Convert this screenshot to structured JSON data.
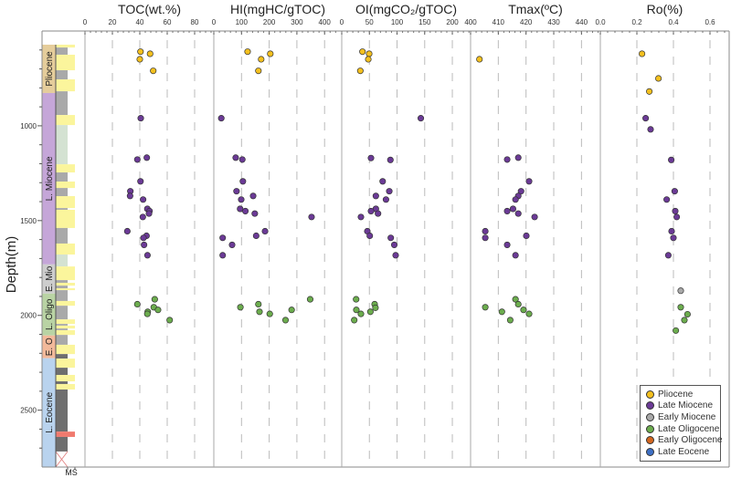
{
  "chart_data": {
    "type": "scatter",
    "ylabel": "Depth(m)",
    "ylim": [
      500,
      2800
    ],
    "yticks": [
      1000,
      1500,
      2000,
      2500
    ],
    "y_inverted": true,
    "grid": "dashed vertical at major x ticks",
    "legend_placement": "bottom-right",
    "legend": [
      {
        "name": "Pliocene",
        "color": "#f4c01e"
      },
      {
        "name": "Late Miocene",
        "color": "#6b3a96"
      },
      {
        "name": "Early Miocene",
        "color": "#a9a9a9"
      },
      {
        "name": "Late Oligocene",
        "color": "#6cad4e"
      },
      {
        "name": "Early Oligocene",
        "color": "#d3661f"
      },
      {
        "name": "Late Eocene",
        "color": "#3d6fc5"
      }
    ],
    "panels": [
      {
        "title": "TOC(wt.%)",
        "xlim": [
          0,
          94
        ],
        "xticks": [
          "0",
          "20",
          "40",
          "60",
          "80"
        ],
        "series": [
          {
            "name": "Pliocene",
            "points": [
              [
                40.5,
                609
              ],
              [
                47.5,
                620
              ],
              [
                40,
                649
              ],
              [
                49.8,
                710
              ]
            ]
          },
          {
            "name": "Late Miocene",
            "points": [
              [
                40.7,
                960
              ],
              [
                38.2,
                1178
              ],
              [
                45.1,
                1168
              ],
              [
                40.5,
                1293
              ],
              [
                33.1,
                1345
              ],
              [
                32.9,
                1370
              ],
              [
                42.4,
                1389
              ],
              [
                45.5,
                1438
              ],
              [
                47.1,
                1450
              ],
              [
                46.7,
                1463
              ],
              [
                42.2,
                1481
              ],
              [
                30.9,
                1556
              ],
              [
                44.9,
                1580
              ],
              [
                42.7,
                1591
              ],
              [
                43.1,
                1628
              ],
              [
                45.6,
                1683
              ]
            ]
          },
          {
            "name": "Late Oligocene",
            "points": [
              [
                38.2,
                1941
              ],
              [
                50.9,
                1915
              ],
              [
                50.2,
                1957
              ],
              [
                53.3,
                1971
              ],
              [
                45.8,
                1981
              ],
              [
                45.5,
                1992
              ],
              [
                61.8,
                2025
              ]
            ]
          }
        ]
      },
      {
        "title": "HI(mgHC/gTOC)",
        "xlim": [
          0,
          462
        ],
        "xticks": [
          "0",
          "100",
          "200",
          "300",
          "400"
        ],
        "series": [
          {
            "name": "Pliocene",
            "points": [
              [
                122,
                609
              ],
              [
                204,
                620
              ],
              [
                171,
                649
              ],
              [
                161,
                710
              ]
            ]
          },
          {
            "name": "Late Miocene",
            "points": [
              [
                27,
                960
              ],
              [
                79,
                1168
              ],
              [
                103,
                1178
              ],
              [
                105,
                1293
              ],
              [
                82,
                1345
              ],
              [
                142,
                1370
              ],
              [
                99,
                1389
              ],
              [
                95,
                1438
              ],
              [
                114,
                1450
              ],
              [
                148,
                1463
              ],
              [
                353,
                1481
              ],
              [
                185,
                1556
              ],
              [
                153,
                1580
              ],
              [
                32,
                1591
              ],
              [
                66,
                1628
              ],
              [
                32,
                1683
              ]
            ]
          },
          {
            "name": "Late Oligocene",
            "points": [
              [
                96,
                1957
              ],
              [
                161,
                1941
              ],
              [
                165,
                1981
              ],
              [
                202,
                1992
              ],
              [
                259,
                2025
              ],
              [
                281,
                1971
              ],
              [
                348,
                1915
              ]
            ]
          }
        ]
      },
      {
        "title": "OI(mgCO₂/gTOC)",
        "xlim": [
          0,
          233
        ],
        "xticks": [
          "0",
          "50",
          "100",
          "150",
          "200"
        ],
        "series": [
          {
            "name": "Pliocene",
            "points": [
              [
                37.5,
                609
              ],
              [
                49.6,
                620
              ],
              [
                48,
                649
              ],
              [
                33.6,
                710
              ]
            ]
          },
          {
            "name": "Late Miocene",
            "points": [
              [
                143,
                960
              ],
              [
                52.9,
                1170
              ],
              [
                88,
                1180
              ],
              [
                74,
                1293
              ],
              [
                86,
                1345
              ],
              [
                61.7,
                1370
              ],
              [
                80,
                1389
              ],
              [
                61.7,
                1438
              ],
              [
                52.9,
                1450
              ],
              [
                65.6,
                1463
              ],
              [
                34.7,
                1481
              ],
              [
                46.3,
                1556
              ],
              [
                50.7,
                1580
              ],
              [
                88.7,
                1591
              ],
              [
                95,
                1628
              ],
              [
                97.5,
                1683
              ]
            ]
          },
          {
            "name": "Late Oligocene",
            "points": [
              [
                26,
                1915
              ],
              [
                26.4,
                1971
              ],
              [
                34.7,
                1992
              ],
              [
                22.6,
                2025
              ],
              [
                59.5,
                1941
              ],
              [
                61,
                1960
              ],
              [
                51.8,
                1981
              ]
            ]
          }
        ]
      },
      {
        "title": "Tmax(ºC)",
        "xlim": [
          400,
          446.8
        ],
        "xticks": [
          "400",
          "410",
          "420",
          "430",
          "440"
        ],
        "series": [
          {
            "name": "Pliocene",
            "points": [
              [
                403.2,
                649
              ]
            ]
          },
          {
            "name": "Late Miocene",
            "points": [
              [
                413.2,
                1178
              ],
              [
                417.2,
                1168
              ],
              [
                421.1,
                1293
              ],
              [
                418.2,
                1345
              ],
              [
                417.2,
                1370
              ],
              [
                416.2,
                1389
              ],
              [
                415.3,
                1438
              ],
              [
                413.2,
                1450
              ],
              [
                417.2,
                1463
              ],
              [
                423.1,
                1481
              ],
              [
                405.3,
                1556
              ],
              [
                405.3,
                1591
              ],
              [
                420.1,
                1580
              ],
              [
                413.2,
                1628
              ],
              [
                416.2,
                1683
              ]
            ]
          },
          {
            "name": "Late Oligocene",
            "points": [
              [
                405.3,
                1957
              ],
              [
                411.3,
                1981
              ],
              [
                414.3,
                2025
              ],
              [
                416.2,
                1915
              ],
              [
                417.2,
                1941
              ],
              [
                419.1,
                1971
              ],
              [
                421.1,
                1992
              ]
            ]
          }
        ]
      },
      {
        "title": "Ro(%)",
        "xlim": [
          0,
          0.705
        ],
        "xticks": [
          "0.0",
          "0.2",
          "0.4",
          "0.6"
        ],
        "series": [
          {
            "name": "Pliocene",
            "points": [
              [
                0.228,
                620
              ],
              [
                0.318,
                750
              ],
              [
                0.268,
                819
              ]
            ]
          },
          {
            "name": "Late Miocene",
            "points": [
              [
                0.248,
                960
              ],
              [
                0.275,
                1019
              ],
              [
                0.388,
                1180
              ],
              [
                0.407,
                1345
              ],
              [
                0.363,
                1389
              ],
              [
                0.41,
                1450
              ],
              [
                0.418,
                1481
              ],
              [
                0.39,
                1556
              ],
              [
                0.4,
                1591
              ],
              [
                0.372,
                1683
              ]
            ]
          },
          {
            "name": "Early Miocene",
            "points": [
              [
                0.44,
                1870
              ]
            ]
          },
          {
            "name": "Late Oligocene",
            "points": [
              [
                0.44,
                1957
              ],
              [
                0.477,
                1994
              ],
              [
                0.46,
                2025
              ],
              [
                0.413,
                2080
              ]
            ]
          }
        ]
      }
    ],
    "stratigraphy": {
      "epochs": [
        {
          "label": "Pliocene",
          "top": 572,
          "base": 827,
          "color": "#e5cd9b"
        },
        {
          "label": "L. Miocene",
          "top": 827,
          "base": 1731,
          "color": "#c5a6d8"
        },
        {
          "label": "E. Mio",
          "top": 1731,
          "base": 1885,
          "color": "#cdcdcd"
        },
        {
          "label": "L. Oligo",
          "top": 1885,
          "base": 2106,
          "color": "#b9d3a4"
        },
        {
          "label": "E. O",
          "top": 2106,
          "base": 2226,
          "color": "#f2b99a"
        },
        {
          "label": "L. Eocene",
          "top": 2226,
          "base": 2800,
          "color": "#b9d3ee"
        }
      ],
      "lithology_colors": {
        "sand": "#fbf59c",
        "shale": "#a9a9a9",
        "green": "#d4e2d2",
        "dark": "#6e6e6e",
        "red": "#f07a6e",
        "missing": "#ffffff"
      },
      "lithology": [
        [
          "sand",
          572,
          587
        ],
        [
          "shale",
          587,
          625
        ],
        [
          "sand",
          625,
          707
        ],
        [
          "shale",
          707,
          755
        ],
        [
          "sand",
          755,
          818
        ],
        [
          "shale",
          818,
          943
        ],
        [
          "sand",
          943,
          996
        ],
        [
          "green",
          996,
          1203
        ],
        [
          "sand",
          1203,
          1246
        ],
        [
          "shale",
          1246,
          1294
        ],
        [
          "sand",
          1294,
          1328
        ],
        [
          "shale",
          1328,
          1371
        ],
        [
          "sand",
          1371,
          1434
        ],
        [
          "shale",
          1434,
          1443
        ],
        [
          "sand",
          1443,
          1539
        ],
        [
          "shale",
          1539,
          1621
        ],
        [
          "sand",
          1621,
          1679
        ],
        [
          "green",
          1679,
          1742
        ],
        [
          "sand",
          1742,
          1814
        ],
        [
          "shale",
          1814,
          1828
        ],
        [
          "sand",
          1828,
          1843
        ],
        [
          "shale",
          1843,
          1857
        ],
        [
          "sand",
          1857,
          1867
        ],
        [
          "shale",
          1867,
          1924
        ],
        [
          "sand",
          1924,
          1949
        ],
        [
          "shale",
          1949,
          2021
        ],
        [
          "sand",
          2021,
          2045
        ],
        [
          "shale",
          2045,
          2054
        ],
        [
          "sand",
          2054,
          2069
        ],
        [
          "shale",
          2069,
          2078
        ],
        [
          "sand",
          2078,
          2103
        ],
        [
          "shale",
          2103,
          2155
        ],
        [
          "sand",
          2155,
          2204
        ],
        [
          "dark",
          2204,
          2228
        ],
        [
          "sand",
          2228,
          2276
        ],
        [
          "dark",
          2276,
          2314
        ],
        [
          "sand",
          2314,
          2348
        ],
        [
          "dark",
          2348,
          2362
        ],
        [
          "sand",
          2362,
          2391
        ],
        [
          "dark",
          2391,
          2613
        ],
        [
          "red",
          2613,
          2641
        ],
        [
          "dark",
          2641,
          2718
        ],
        [
          "missing",
          2718,
          2800
        ]
      ],
      "column_label": "MS"
    }
  }
}
